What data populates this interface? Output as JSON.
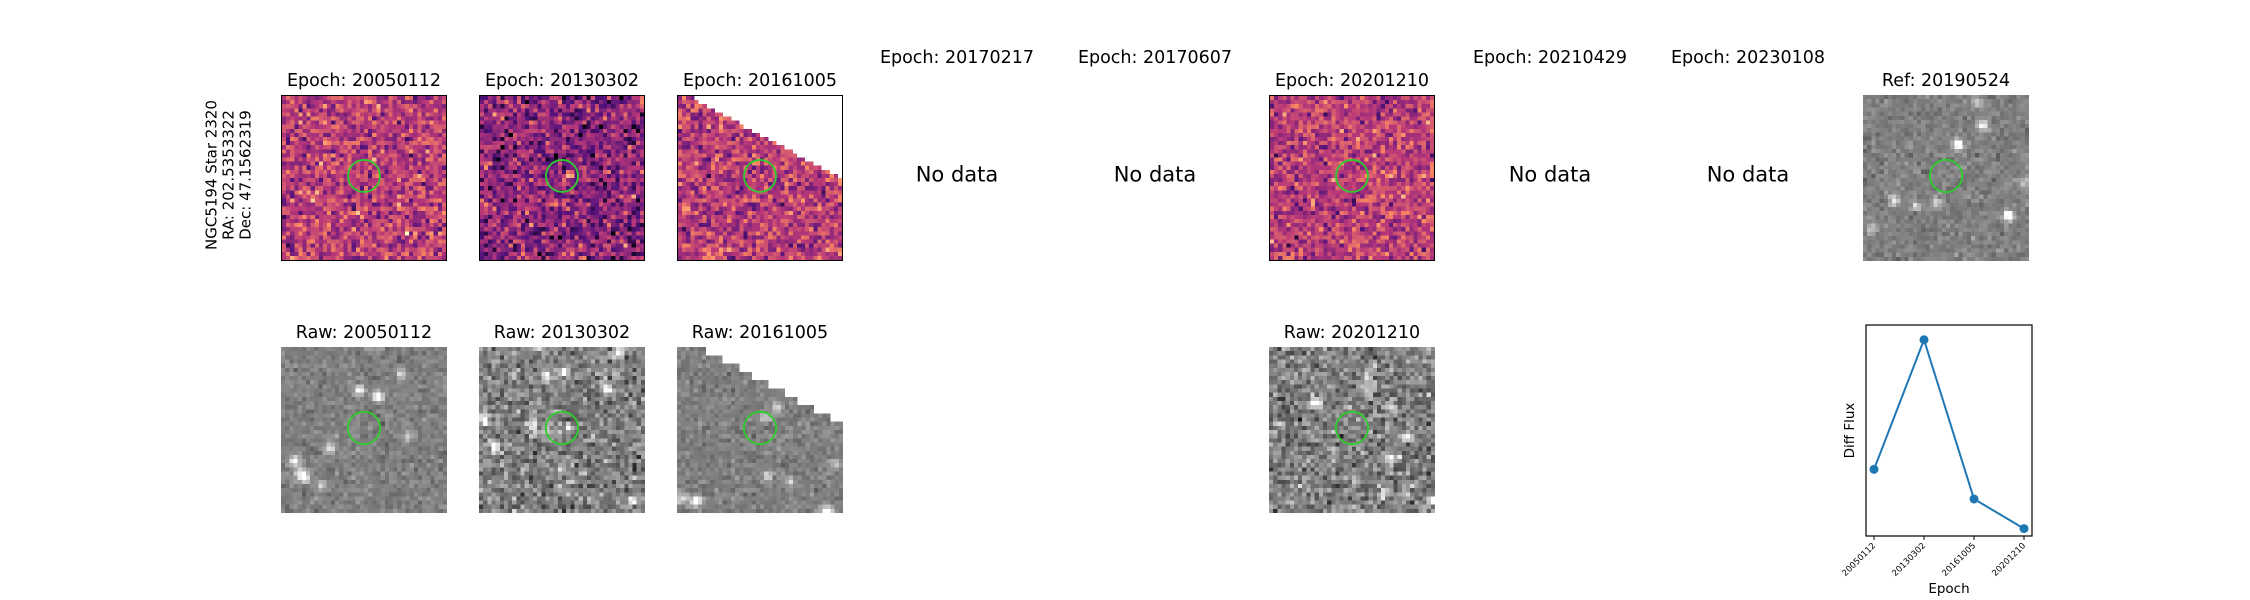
{
  "star_label": {
    "line1": "NGC5194 Star 2320",
    "line2": "RA: 202.5353322",
    "line3": "Dec: 47.1562319"
  },
  "diff_panels": [
    {
      "title": "Epoch: 20050112",
      "has_data": true
    },
    {
      "title": "Epoch: 20130302",
      "has_data": true
    },
    {
      "title": "Epoch: 20161005",
      "has_data": true
    },
    {
      "title": "Epoch: 20170217",
      "has_data": false,
      "message": "No data"
    },
    {
      "title": "Epoch: 20170607",
      "has_data": false,
      "message": "No data"
    },
    {
      "title": "Epoch: 20201210",
      "has_data": true
    },
    {
      "title": "Epoch: 20210429",
      "has_data": false,
      "message": "No data"
    },
    {
      "title": "Epoch: 20230108",
      "has_data": false,
      "message": "No data"
    }
  ],
  "ref_panel": {
    "title": "Ref: 20190524"
  },
  "raw_panels": [
    {
      "title": "Raw: 20050112"
    },
    {
      "title": "Raw: 20130302"
    },
    {
      "title": "Raw: 20161005"
    },
    {
      "title": "Raw: 20201210"
    }
  ],
  "chart_data": {
    "type": "line",
    "title": "",
    "xlabel": "Epoch",
    "ylabel": "Diff Flux",
    "categories": [
      "20050112",
      "20130302",
      "20161005",
      "20201210"
    ],
    "series": [
      {
        "name": "Diff Flux",
        "values": [
          0.3,
          1.0,
          0.14,
          -0.02
        ]
      }
    ],
    "ylim": [
      -0.06,
      1.08
    ],
    "y_ticks_shown": false,
    "grid": false,
    "colors": {
      "line": "#1f77b4",
      "marker": "#1f77b4"
    }
  },
  "colors": {
    "aperture": "#2ecc2e",
    "diff_colormap": "magma",
    "raw_colormap": "gray"
  }
}
